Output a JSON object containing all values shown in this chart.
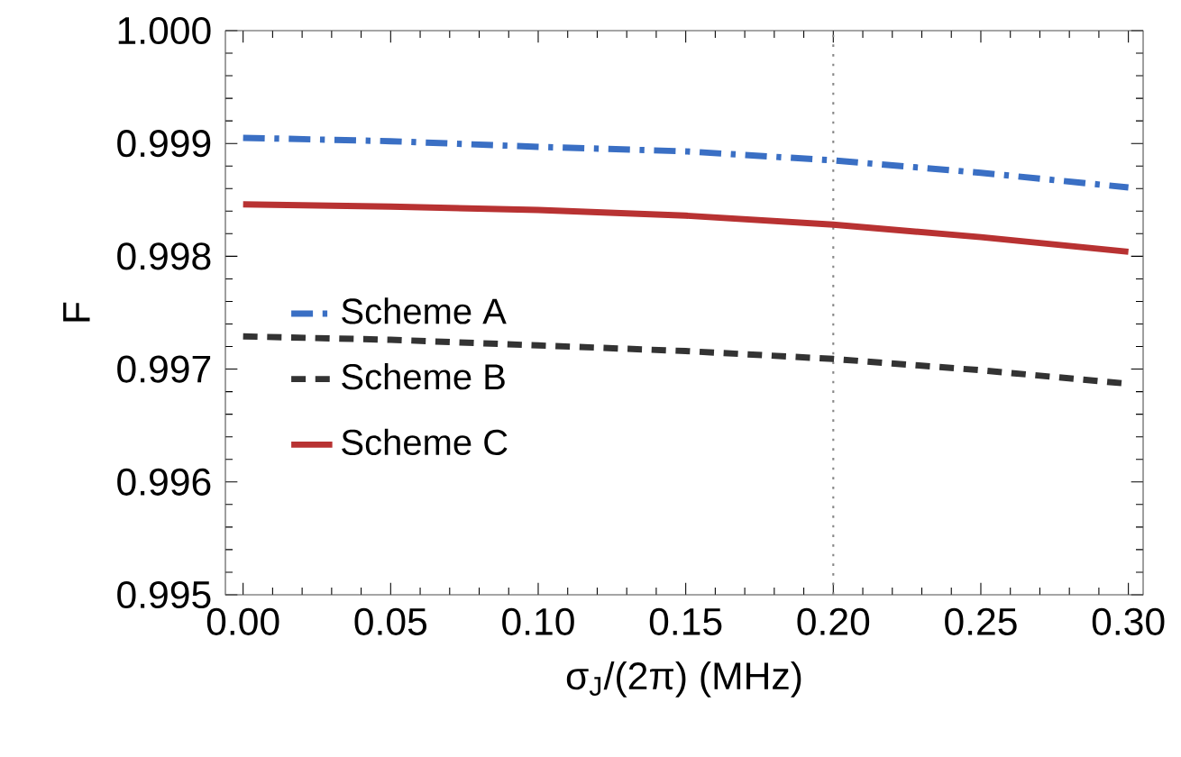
{
  "chart_data": {
    "type": "line",
    "xlabel": "σ$_{J}$/(2π)  (MHz)",
    "ylabel": "F",
    "x": [
      0,
      0.05,
      0.1,
      0.15,
      0.2,
      0.25,
      0.3
    ],
    "series": [
      {
        "name": "Scheme A",
        "color": "#3a6fc4",
        "line_style": "dashdot",
        "values": [
          0.99905,
          0.99902,
          0.99897,
          0.99893,
          0.99885,
          0.99874,
          0.99861
        ]
      },
      {
        "name": "Scheme B",
        "color": "#333333",
        "line_style": "dashed",
        "values": [
          0.99729,
          0.99726,
          0.99721,
          0.99716,
          0.99709,
          0.99699,
          0.99687
        ]
      },
      {
        "name": "Scheme C",
        "color": "#b83232",
        "line_style": "solid",
        "values": [
          0.99846,
          0.99844,
          0.99841,
          0.99836,
          0.99828,
          0.99817,
          0.99804
        ]
      }
    ],
    "xlim": [
      -0.006,
      0.305
    ],
    "ylim": [
      0.995,
      1.0
    ],
    "xticks": [
      {
        "value": 0,
        "label": "0.00"
      },
      0.05,
      {
        "value": 0.1,
        "label": "0.10"
      },
      0.15,
      {
        "value": 0.2,
        "label": "0.20"
      },
      0.25,
      {
        "value": 0.3,
        "label": "0.30"
      }
    ],
    "yticks": [
      0.995,
      0.996,
      0.997,
      0.998,
      0.999,
      {
        "value": 1.0,
        "label": "1.000"
      }
    ],
    "ref_lines": [
      {
        "axis": "x",
        "value": 0.2,
        "color": "#888888",
        "line_style": "dotted"
      }
    ],
    "legend": "left",
    "grid": false,
    "marker": "none"
  }
}
